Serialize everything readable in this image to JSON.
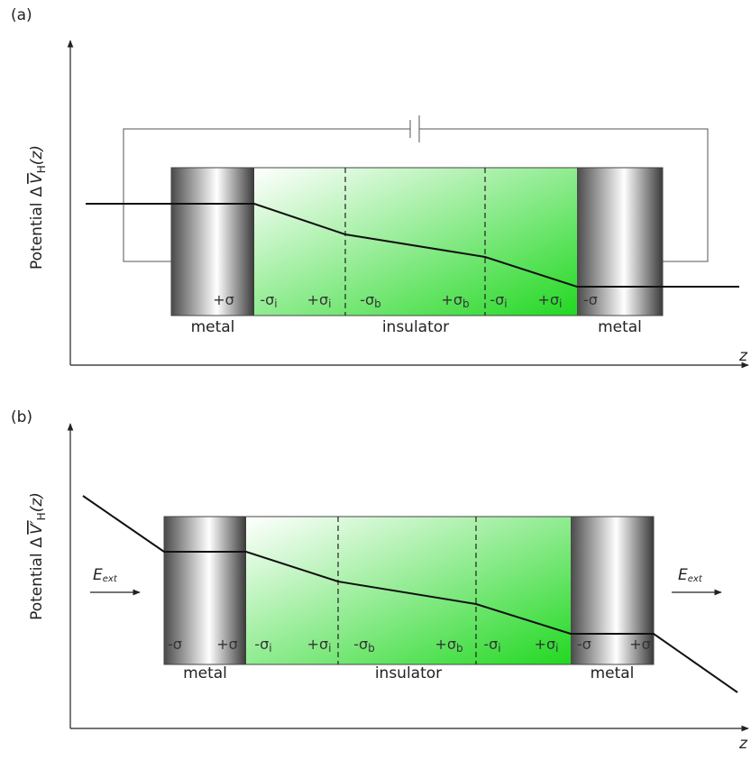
{
  "panels": [
    {
      "label": "(a)",
      "y_axis": {
        "prefix": "Potential",
        "delta": "Δ",
        "symbol": "V",
        "sub": "H",
        "arg": "(z)"
      },
      "x_axis": "z",
      "charges": [
        {
          "text": "+σ"
        },
        {
          "text": "-σ",
          "sub": "i"
        },
        {
          "text": "+σ",
          "sub": "i"
        },
        {
          "text": "-σ",
          "sub": "b"
        },
        {
          "text": "+σ",
          "sub": "b"
        },
        {
          "text": "-σ",
          "sub": "i"
        },
        {
          "text": "+σ",
          "sub": "i"
        },
        {
          "text": "-σ"
        }
      ],
      "regions": [
        "metal",
        "insulator",
        "metal"
      ]
    },
    {
      "label": "(b)",
      "y_axis": {
        "prefix": "Potential",
        "delta": "Δ",
        "symbol": "V′",
        "sub": "H",
        "arg": "(z)"
      },
      "x_axis": "z",
      "charges": [
        {
          "text": "-σ"
        },
        {
          "text": "+σ"
        },
        {
          "text": "-σ",
          "sub": "i"
        },
        {
          "text": "+σ",
          "sub": "i"
        },
        {
          "text": "-σ",
          "sub": "b"
        },
        {
          "text": "+σ",
          "sub": "b"
        },
        {
          "text": "-σ",
          "sub": "i"
        },
        {
          "text": "+σ",
          "sub": "i"
        },
        {
          "text": "-σ"
        },
        {
          "text": "+σ"
        }
      ],
      "regions": [
        "metal",
        "insulator",
        "metal"
      ],
      "field": {
        "symbol": "E",
        "sub": "ext"
      }
    }
  ]
}
